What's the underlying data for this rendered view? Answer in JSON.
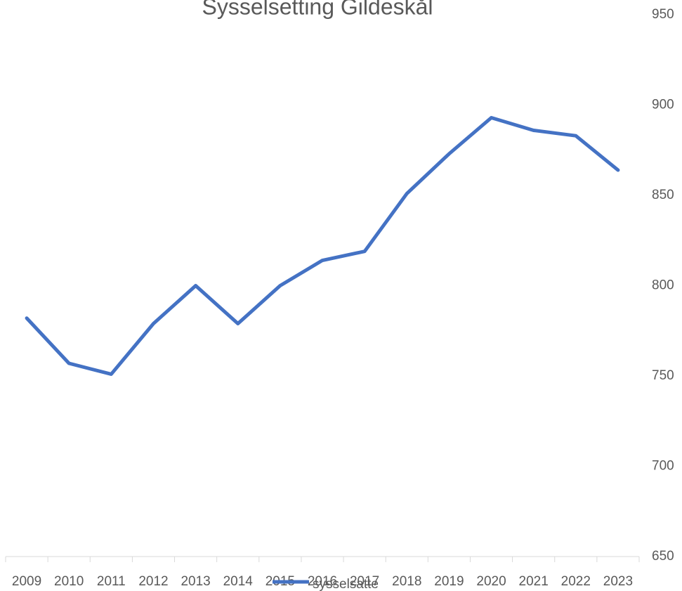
{
  "chart_data": {
    "type": "line",
    "title": "Sysselsetting Gildeskål",
    "categories": [
      "2009",
      "2010",
      "2011",
      "2012",
      "2013",
      "2014",
      "2015",
      "2016",
      "2017",
      "2018",
      "2019",
      "2020",
      "2021",
      "2022",
      "2023"
    ],
    "series": [
      {
        "name": "sysselsatte",
        "color": "#4472c4",
        "values": [
          782,
          757,
          751,
          779,
          800,
          779,
          800,
          814,
          819,
          851,
          873,
          893,
          886,
          883,
          864
        ]
      }
    ],
    "ylim": [
      650,
      950
    ],
    "yticks": [
      650,
      700,
      750,
      800,
      850,
      900,
      950
    ],
    "grid": false,
    "legend": "bottom"
  }
}
